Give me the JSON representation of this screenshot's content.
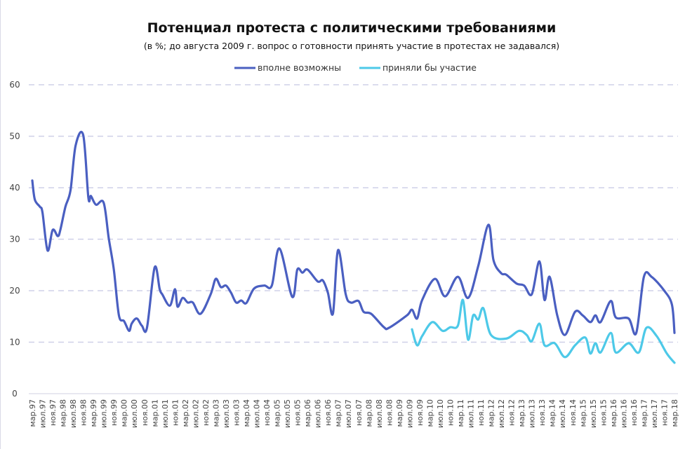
{
  "chart_data": {
    "type": "line",
    "title": "Потенциал протеста с политическими требованиями",
    "subtitle": "(в %; до августа 2009 г. вопрос о готовности принять участие в протестах не задавался)",
    "x_unit": "months since мар.97",
    "ylim": [
      0,
      60
    ],
    "yticks": [
      "0",
      "10",
      "20",
      "30",
      "40",
      "50",
      "60"
    ],
    "grid": true,
    "legend_position": "top",
    "x_tick_labels": [
      "мар.97",
      "июл.97",
      "ноя.97",
      "мар.98",
      "июл.98",
      "ноя.98",
      "мар.99",
      "июл.99",
      "ноя.99",
      "мар.00",
      "июл.00",
      "ноя.00",
      "мар.01",
      "июл.01",
      "ноя.01",
      "мар.02",
      "июл.02",
      "ноя.02",
      "мар.03",
      "июл.03",
      "ноя.03",
      "мар.04",
      "июл.04",
      "ноя.04",
      "мар.05",
      "июл.05",
      "ноя.05",
      "мар.06",
      "июл.06",
      "ноя.06",
      "мар.07",
      "июл.07",
      "ноя.07",
      "мар.08",
      "июл.08",
      "ноя.08",
      "мар.09",
      "июл.09",
      "ноя.09",
      "мар.10",
      "июл.10",
      "ноя.10",
      "мар.11",
      "июл.11",
      "ноя.11",
      "мар.12",
      "июл.12",
      "ноя.12",
      "мар.13",
      "июл.13",
      "ноя.13",
      "мар.14",
      "июл.14",
      "ноя.14",
      "мар.15",
      "июл.15",
      "ноя.15",
      "мар.16",
      "июл.16",
      "ноя.16",
      "мар.17",
      "июл.17",
      "ноя.17",
      "мар.18"
    ],
    "series": [
      {
        "name": "вполне возможны",
        "color": "#4a5fc1",
        "points": [
          [
            0,
            41.4
          ],
          [
            1,
            37.7
          ],
          [
            3,
            36.3
          ],
          [
            4,
            35.2
          ],
          [
            6,
            27.8
          ],
          [
            8,
            31.8
          ],
          [
            10,
            30.6
          ],
          [
            11,
            31.8
          ],
          [
            13,
            36.3
          ],
          [
            15,
            39.5
          ],
          [
            17,
            48.2
          ],
          [
            20,
            50.2
          ],
          [
            22,
            38.1
          ],
          [
            23,
            38.4
          ],
          [
            25,
            36.7
          ],
          [
            28,
            37.1
          ],
          [
            30,
            30.2
          ],
          [
            32,
            24.1
          ],
          [
            34,
            15.2
          ],
          [
            36,
            14.1
          ],
          [
            38,
            12.2
          ],
          [
            39,
            13.6
          ],
          [
            41,
            14.6
          ],
          [
            43,
            13.2
          ],
          [
            45,
            12.8
          ],
          [
            48,
            24.5
          ],
          [
            50,
            20.3
          ],
          [
            51,
            19.3
          ],
          [
            54,
            17.1
          ],
          [
            56,
            20.3
          ],
          [
            57,
            16.9
          ],
          [
            59,
            18.6
          ],
          [
            61,
            17.7
          ],
          [
            63,
            17.7
          ],
          [
            66,
            15.5
          ],
          [
            70,
            19.3
          ],
          [
            72,
            22.3
          ],
          [
            74,
            20.7
          ],
          [
            76,
            21
          ],
          [
            78,
            19.6
          ],
          [
            80,
            17.7
          ],
          [
            82,
            18.1
          ],
          [
            84,
            17.6
          ],
          [
            87,
            20.4
          ],
          [
            91,
            21
          ],
          [
            94,
            21
          ],
          [
            97,
            28.2
          ],
          [
            102,
            18.8
          ],
          [
            104,
            24.1
          ],
          [
            106,
            23.5
          ],
          [
            108,
            24.1
          ],
          [
            112,
            21.8
          ],
          [
            114,
            22
          ],
          [
            116,
            19.6
          ],
          [
            118,
            15.6
          ],
          [
            120,
            27.9
          ],
          [
            123,
            19.3
          ],
          [
            125,
            17.7
          ],
          [
            128,
            18
          ],
          [
            130,
            15.9
          ],
          [
            133,
            15.5
          ],
          [
            138,
            12.9
          ],
          [
            140,
            12.8
          ],
          [
            147,
            15.2
          ],
          [
            149,
            16.3
          ],
          [
            151,
            14.6
          ],
          [
            153,
            18.2
          ],
          [
            158,
            22.3
          ],
          [
            162,
            18.9
          ],
          [
            167,
            22.7
          ],
          [
            171,
            18.6
          ],
          [
            175,
            24.8
          ],
          [
            179,
            32.8
          ],
          [
            181,
            25.9
          ],
          [
            184,
            23.4
          ],
          [
            186,
            23.1
          ],
          [
            190,
            21.4
          ],
          [
            193,
            21
          ],
          [
            196,
            19.3
          ],
          [
            199,
            25.7
          ],
          [
            201,
            18.2
          ],
          [
            203,
            22.7
          ],
          [
            206,
            15.2
          ],
          [
            209,
            11.4
          ],
          [
            213,
            15.9
          ],
          [
            216,
            15.2
          ],
          [
            219,
            13.9
          ],
          [
            221,
            15.2
          ],
          [
            223,
            13.9
          ],
          [
            227,
            18
          ],
          [
            229,
            14.8
          ],
          [
            234,
            14.6
          ],
          [
            237,
            11.8
          ],
          [
            240,
            22.7
          ],
          [
            243,
            22.7
          ],
          [
            248,
            20
          ],
          [
            251,
            17.3
          ],
          [
            252,
            11.8
          ]
        ]
      },
      {
        "name": "приняли бы участие",
        "color": "#4dc9e8",
        "points": [
          [
            149,
            12.5
          ],
          [
            151,
            9.4
          ],
          [
            153,
            11.2
          ],
          [
            157,
            13.9
          ],
          [
            161,
            12.2
          ],
          [
            164,
            12.9
          ],
          [
            167,
            13.2
          ],
          [
            169,
            18.2
          ],
          [
            171,
            10.5
          ],
          [
            173,
            15.2
          ],
          [
            175,
            14.4
          ],
          [
            177,
            16.6
          ],
          [
            180,
            11.4
          ],
          [
            186,
            10.7
          ],
          [
            191,
            12.2
          ],
          [
            194,
            11.4
          ],
          [
            196,
            10.2
          ],
          [
            199,
            13.6
          ],
          [
            201,
            9.4
          ],
          [
            205,
            9.8
          ],
          [
            209,
            7.1
          ],
          [
            213,
            9.4
          ],
          [
            217,
            10.9
          ],
          [
            219,
            7.8
          ],
          [
            221,
            9.8
          ],
          [
            223,
            8
          ],
          [
            227,
            11.8
          ],
          [
            229,
            8
          ],
          [
            234,
            9.8
          ],
          [
            238,
            8
          ],
          [
            241,
            12.8
          ],
          [
            245,
            11.2
          ],
          [
            249,
            7.8
          ],
          [
            252,
            6
          ]
        ]
      }
    ]
  }
}
